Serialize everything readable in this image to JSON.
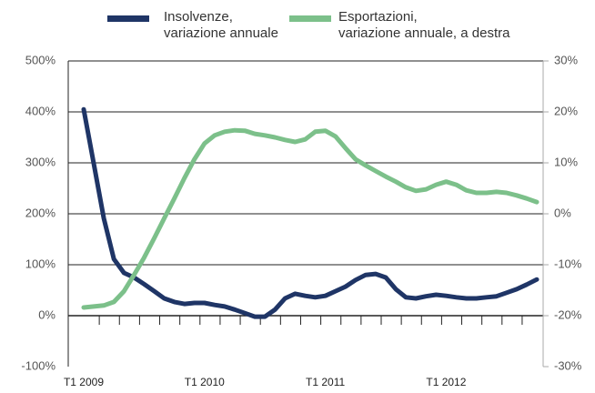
{
  "chart_data": {
    "type": "line",
    "categories": [
      "T1 2009",
      null,
      null,
      null,
      null,
      null,
      null,
      null,
      null,
      null,
      null,
      null,
      "T1 2010",
      null,
      null,
      null,
      null,
      null,
      null,
      null,
      null,
      null,
      null,
      null,
      "T1 2011",
      null,
      null,
      null,
      null,
      null,
      null,
      null,
      null,
      null,
      null,
      null,
      "T1 2012",
      null,
      null,
      null,
      null,
      null,
      null,
      null,
      null,
      null
    ],
    "series": [
      {
        "name": "Insolvenze,\nvariazione annuale",
        "color": "#1f3566",
        "axis": "y",
        "values": [
          405,
          298,
          191,
          111,
          84,
          75,
          62,
          48,
          34,
          27,
          23,
          25,
          25,
          21,
          18,
          12,
          5,
          -2,
          -2,
          12,
          34,
          43,
          39,
          36,
          39,
          48,
          57,
          70,
          80,
          82,
          75,
          52,
          36,
          34,
          38,
          41,
          39,
          36,
          34,
          34,
          36,
          38,
          45,
          52,
          61,
          71
        ]
      },
      {
        "name": "Esportazioni,\nvariazione annuale, a destra",
        "color": "#7cc08a",
        "axis": "y2",
        "values": [
          -18.4,
          -18.2,
          -18,
          -17.3,
          -15.2,
          -12,
          -8.6,
          -4.8,
          -0.9,
          3,
          7,
          10.7,
          13.8,
          15.4,
          16.1,
          16.4,
          16.3,
          15.7,
          15.4,
          15,
          14.5,
          14.1,
          14.6,
          16.1,
          16.3,
          15.2,
          12.9,
          10.7,
          9.5,
          8.4,
          7.3,
          6.3,
          5.2,
          4.5,
          4.8,
          5.7,
          6.3,
          5.7,
          4.6,
          4.1,
          4.1,
          4.3,
          4.1,
          3.6,
          3,
          2.3
        ]
      }
    ],
    "ylim": [
      -100,
      500
    ],
    "yticks": [
      {
        "value": -100,
        "label": "-100%"
      },
      {
        "value": 0,
        "label": "0%"
      },
      {
        "value": 100,
        "label": "100%"
      },
      {
        "value": 200,
        "label": "200%"
      },
      {
        "value": 300,
        "label": "300%"
      },
      {
        "value": 400,
        "label": "400%"
      },
      {
        "value": 500,
        "label": "500%"
      }
    ],
    "y2lim": [
      -30,
      30
    ],
    "y2ticks": [
      {
        "value": -30,
        "label": "-30%"
      },
      {
        "value": -20,
        "label": "-20%"
      },
      {
        "value": -10,
        "label": "-10%"
      },
      {
        "value": 0,
        "label": "0%"
      },
      {
        "value": 10,
        "label": "10%"
      },
      {
        "value": 20,
        "label": "20%"
      },
      {
        "value": 30,
        "label": "30%"
      }
    ],
    "grid": true
  }
}
